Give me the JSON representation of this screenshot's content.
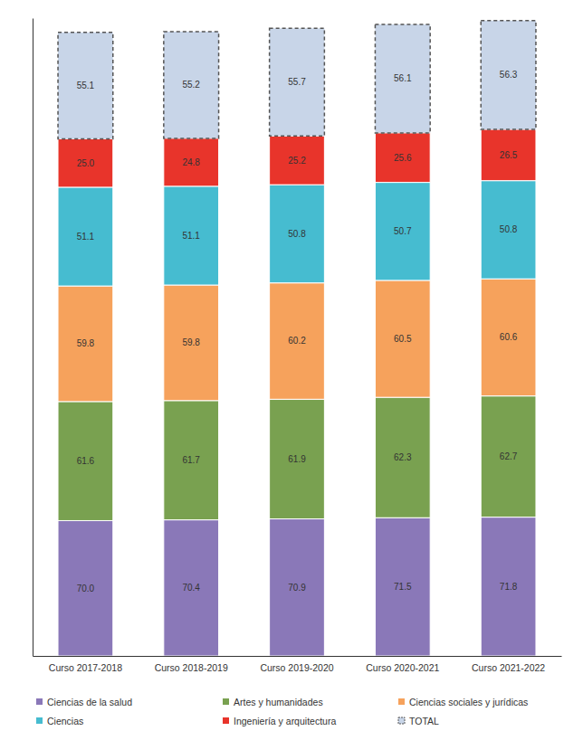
{
  "chart_data": {
    "type": "bar",
    "stacked": true,
    "data_labels": true,
    "tick_labels": "x",
    "legend": "bottom",
    "grid": false,
    "categories": [
      "Curso 2017-2018",
      "Curso 2018-2019",
      "Curso 2019-2020",
      "Curso 2020-2021",
      "Curso 2021-2022"
    ],
    "ylim": [
      0,
      330
    ],
    "series": [
      {
        "name": "Ciencias de la salud",
        "color": "#8a78b8",
        "values": [
          70.0,
          70.4,
          70.9,
          71.5,
          71.8
        ],
        "value_labels": [
          "70.0",
          "70.4",
          "70.9",
          "71.5",
          "71.8"
        ]
      },
      {
        "name": "Artes y humanidades",
        "color": "#79a150",
        "values": [
          61.6,
          61.7,
          61.9,
          62.3,
          62.7
        ],
        "value_labels": [
          "61.6",
          "61.7",
          "61.9",
          "62.3",
          "62.7"
        ]
      },
      {
        "name": "Ciencias sociales y jurídicas",
        "color": "#f6a25c",
        "values": [
          59.8,
          59.8,
          60.2,
          60.5,
          60.6
        ],
        "value_labels": [
          "59.8",
          "59.8",
          "60.2",
          "60.5",
          "60.6"
        ]
      },
      {
        "name": "Ciencias",
        "color": "#46bcd0",
        "values": [
          51.1,
          51.1,
          50.8,
          50.7,
          50.8
        ],
        "value_labels": [
          "51.1",
          "51.1",
          "50.8",
          "50.7",
          "50.8"
        ]
      },
      {
        "name": "Ingeniería y arquitectura",
        "color": "#e8342b",
        "values": [
          25.0,
          24.8,
          25.2,
          25.6,
          26.5
        ],
        "value_labels": [
          "25.0",
          "24.8",
          "25.2",
          "25.6",
          "26.5"
        ]
      },
      {
        "name": "TOTAL",
        "color": "#c8d5e8",
        "line_style": "dashed",
        "values": [
          55.1,
          55.2,
          55.7,
          56.1,
          56.3
        ],
        "value_labels": [
          "55.1",
          "55.2",
          "55.7",
          "56.1",
          "56.3"
        ]
      }
    ]
  }
}
